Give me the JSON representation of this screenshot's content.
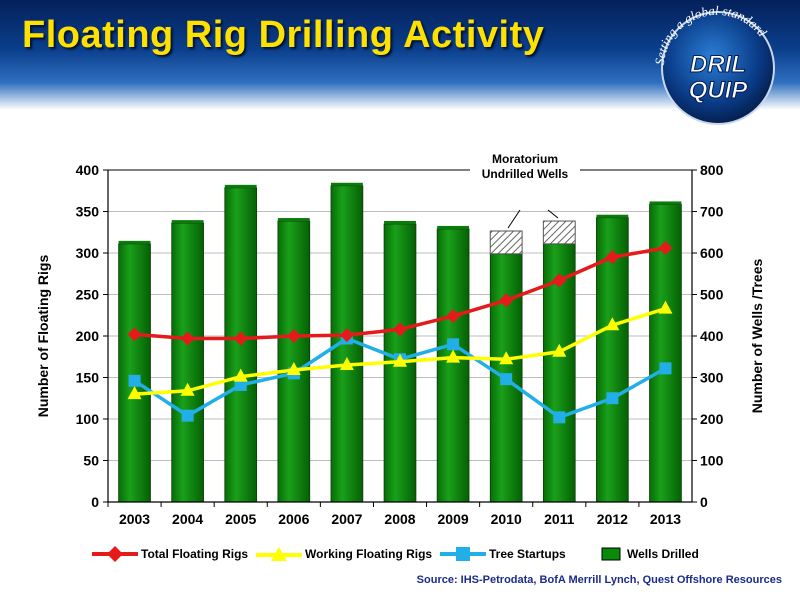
{
  "header": {
    "title": "Floating Rig Drilling Activity"
  },
  "logo": {
    "tagline": "Setting a global standard",
    "line1": "DRIL",
    "line2": "QUIP"
  },
  "source": "Source:  IHS-Petrodata, BofA Merrill Lynch, Quest Offshore Resources",
  "annotation": {
    "line1": "Moratorium",
    "line2": "Undrilled Wells"
  },
  "colors": {
    "title": "#ffe100",
    "bar": "#0a8a0a",
    "total": "#e51a1a",
    "working": "#ffff00",
    "tree": "#22aee6"
  },
  "chart_data": {
    "type": "bar",
    "categories": [
      "2003",
      "2004",
      "2005",
      "2006",
      "2007",
      "2008",
      "2009",
      "2010",
      "2011",
      "2012",
      "2013"
    ],
    "ylabel": "Number of Floating Rigs",
    "y2label": "Number of Wells /Trees",
    "ylim": [
      0,
      400
    ],
    "y2lim": [
      0,
      800
    ],
    "yticks": [
      0,
      50,
      100,
      150,
      200,
      250,
      300,
      350,
      400
    ],
    "y2ticks": [
      0,
      100,
      200,
      300,
      400,
      500,
      600,
      700,
      800
    ],
    "grid": true,
    "series": [
      {
        "name": "Wells Drilled",
        "type": "bar",
        "axis": "right",
        "values": [
          622,
          672,
          757,
          677,
          762,
          670,
          658,
          598,
          622,
          685,
          717
        ]
      },
      {
        "name": "Moratorium Undrilled Wells",
        "type": "bar-stack",
        "axis": "right",
        "values": [
          0,
          0,
          0,
          0,
          0,
          0,
          0,
          55,
          55,
          0,
          0
        ]
      },
      {
        "name": "Total Floating Rigs",
        "type": "line",
        "axis": "left",
        "marker": "diamond",
        "values": [
          202,
          197,
          197,
          200,
          201,
          208,
          224,
          243,
          267,
          295,
          306
        ]
      },
      {
        "name": "Working Floating Rigs",
        "type": "line",
        "axis": "left",
        "marker": "triangle",
        "values": [
          130,
          134,
          151,
          159,
          165,
          169,
          174,
          172,
          181,
          213,
          233
        ]
      },
      {
        "name": "Tree Startups",
        "type": "line",
        "axis": "left",
        "marker": "square",
        "values": [
          146,
          104,
          141,
          155,
          197,
          172,
          190,
          148,
          102,
          125,
          161
        ]
      }
    ],
    "legend": [
      "Total Floating Rigs",
      "Working Floating Rigs",
      "Tree Startups",
      "Wells Drilled"
    ]
  }
}
